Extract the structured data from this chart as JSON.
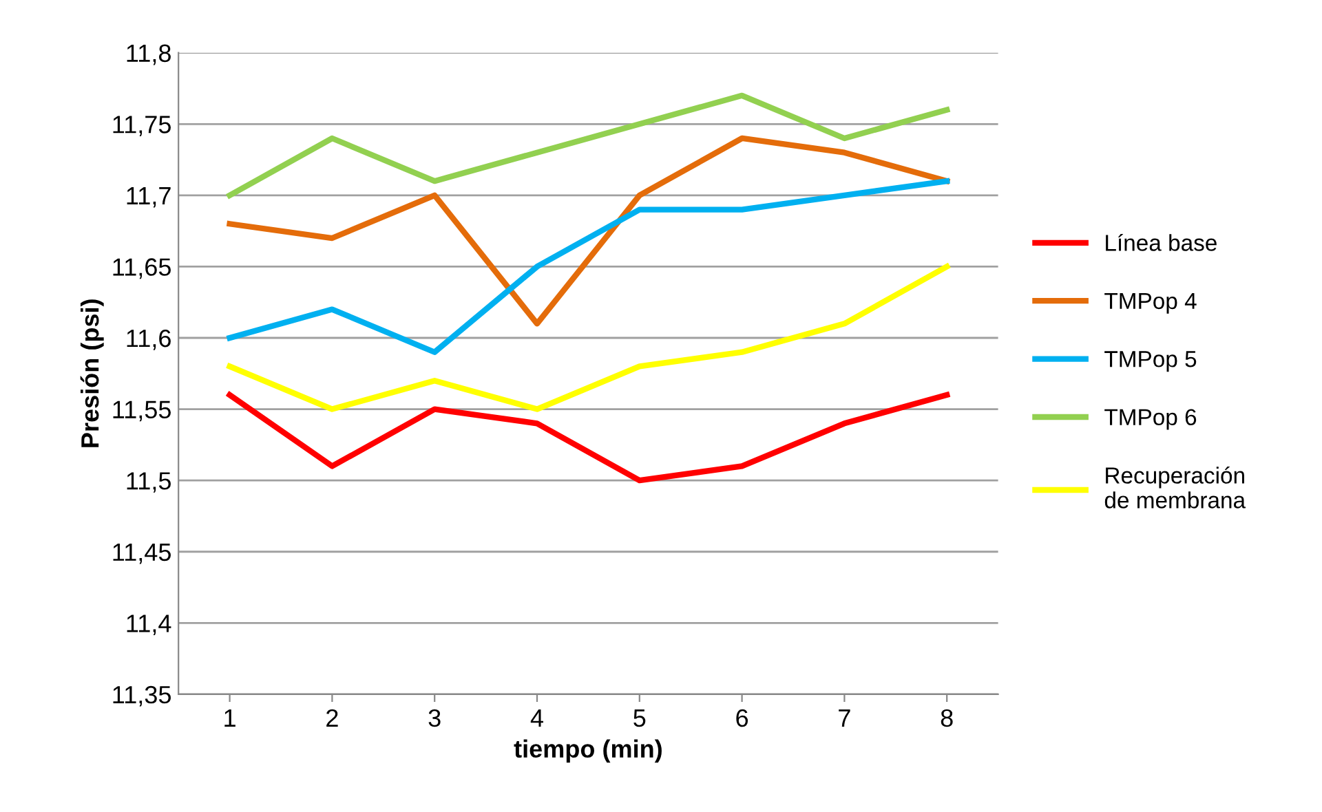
{
  "chart_data": {
    "type": "line",
    "xlabel": "tiempo (min)",
    "ylabel": "Presión (psi)",
    "categories": [
      "1",
      "2",
      "3",
      "4",
      "5",
      "6",
      "7",
      "8"
    ],
    "series": [
      {
        "name": "Línea base",
        "color": "#ff0000",
        "values": [
          11.56,
          11.51,
          11.55,
          11.54,
          11.5,
          11.51,
          11.54,
          11.56
        ]
      },
      {
        "name": "TMPop 4",
        "color": "#e46c0a",
        "values": [
          11.68,
          11.67,
          11.7,
          11.61,
          11.7,
          11.74,
          11.73,
          11.71
        ]
      },
      {
        "name": "TMPop 5",
        "color": "#00b0f0",
        "values": [
          11.6,
          11.62,
          11.59,
          11.65,
          11.69,
          11.69,
          11.7,
          11.71
        ]
      },
      {
        "name": "TMPop 6",
        "color": "#92d050",
        "values": [
          11.7,
          11.74,
          11.71,
          11.73,
          11.75,
          11.77,
          11.74,
          11.76
        ]
      },
      {
        "name": "Recuperación\nde membrana",
        "color": "#ffff00",
        "values": [
          11.58,
          11.55,
          11.57,
          11.55,
          11.58,
          11.59,
          11.61,
          11.65
        ]
      }
    ],
    "ylim": [
      11.35,
      11.8
    ],
    "yticks": [
      {
        "value": 11.35,
        "label": "11,35"
      },
      {
        "value": 11.4,
        "label": "11,4"
      },
      {
        "value": 11.45,
        "label": "11,45"
      },
      {
        "value": 11.5,
        "label": "11,5"
      },
      {
        "value": 11.55,
        "label": "11,55"
      },
      {
        "value": 11.6,
        "label": "11,6"
      },
      {
        "value": 11.65,
        "label": "11,65"
      },
      {
        "value": 11.7,
        "label": "11,7"
      },
      {
        "value": 11.75,
        "label": "11,75"
      },
      {
        "value": 11.8,
        "label": "11,8"
      }
    ],
    "grid": "y",
    "legend": "right",
    "marker": "none",
    "line_style": "solid"
  }
}
